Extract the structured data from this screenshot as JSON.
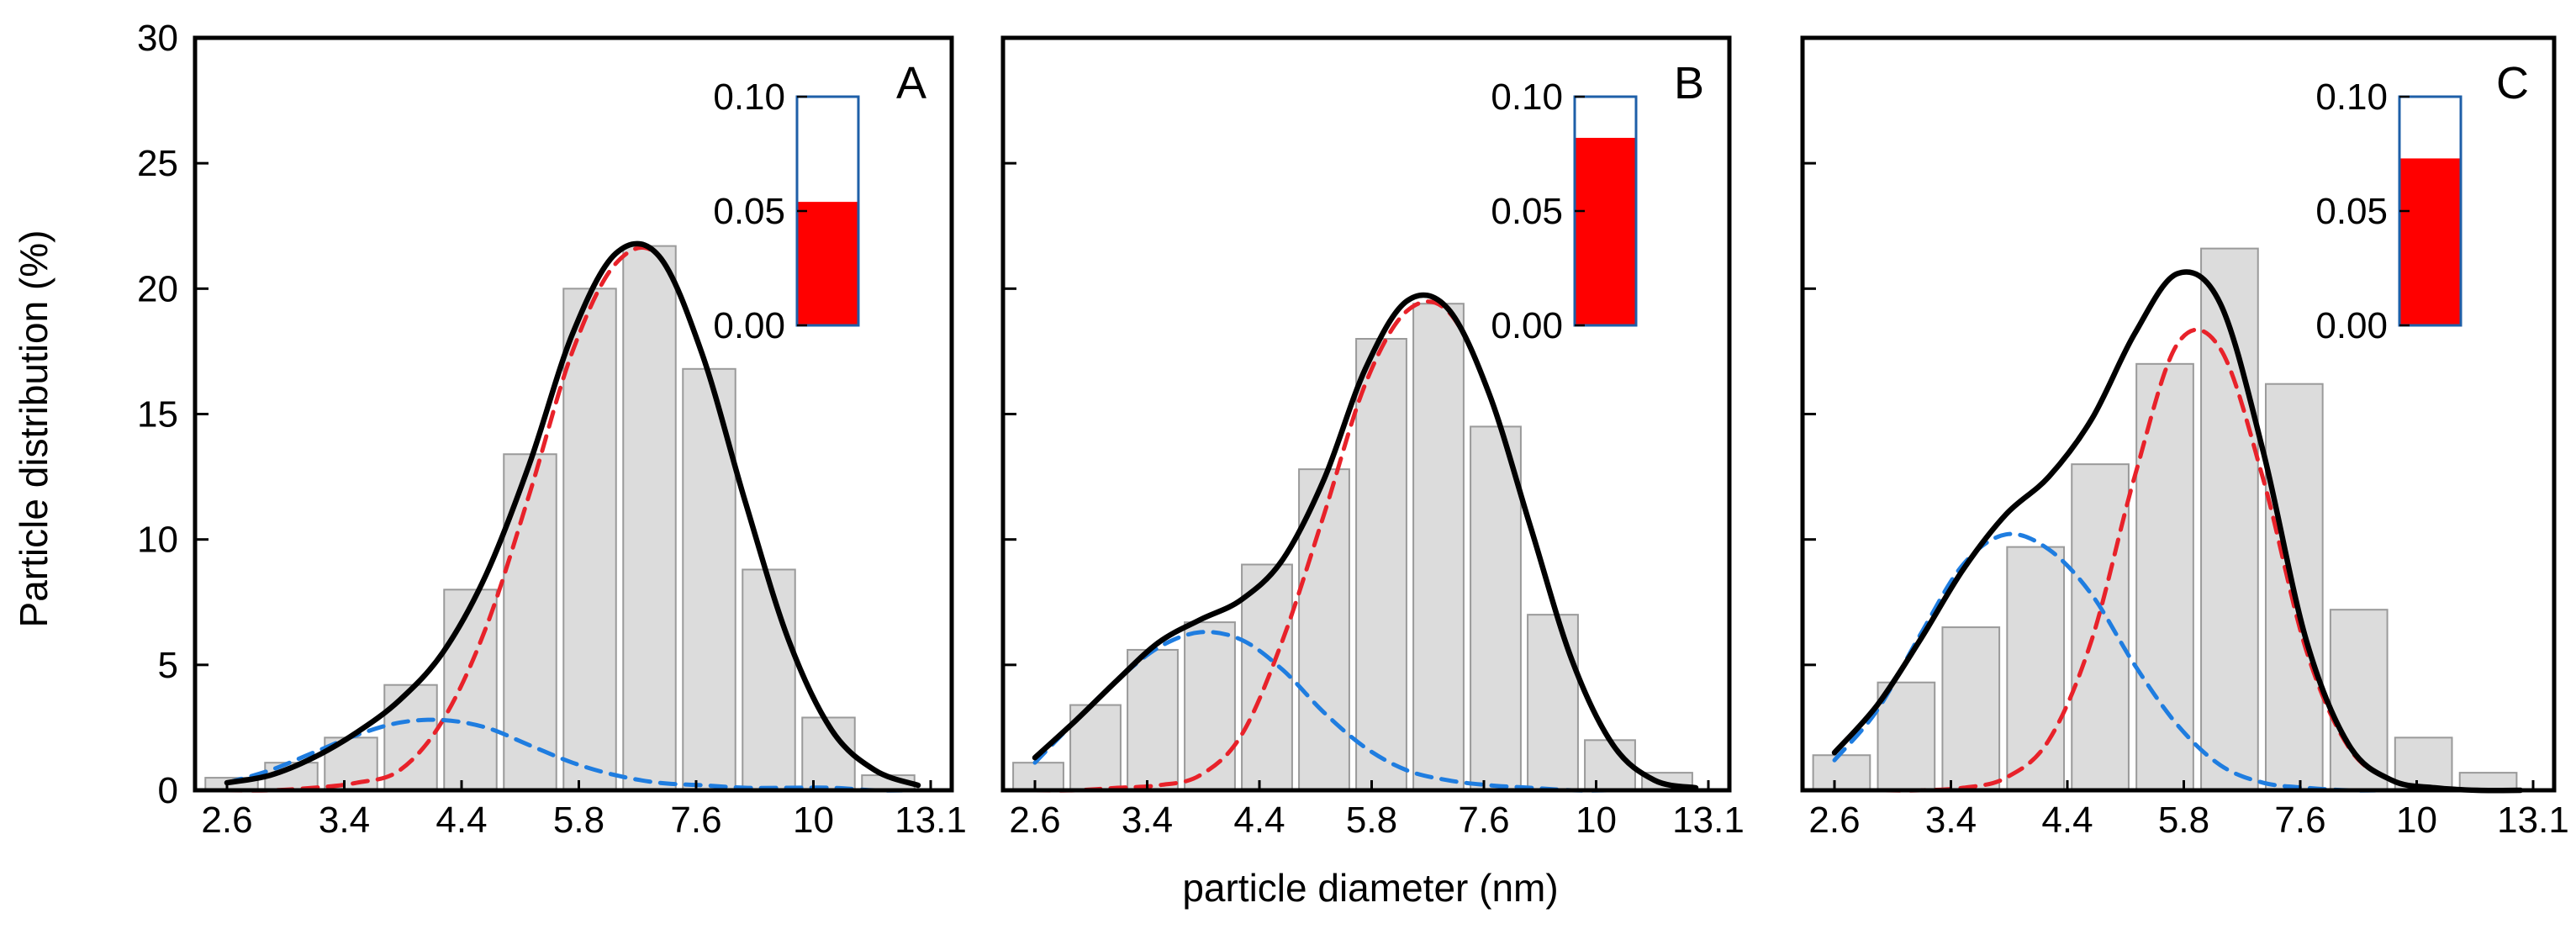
{
  "figure": {
    "ylabel": "Particle distribution (%)",
    "xlabel": "particle diameter (nm)"
  },
  "chart_data": [
    {
      "type": "bar",
      "panel": "A",
      "categories": [
        "2.6",
        "3.4",
        "4.4",
        "5.8",
        "7.6",
        "10",
        "13.1"
      ],
      "ylim": [
        0,
        30
      ],
      "yticks": [
        0,
        5,
        10,
        15,
        20,
        25,
        30
      ],
      "bars": [
        0.5,
        1.1,
        2.1,
        4.2,
        8.0,
        13.4,
        20.0,
        21.7,
        16.8,
        8.8,
        2.9,
        0.6
      ],
      "curves": {
        "total": [
          0.3,
          0.6,
          1.3,
          2.3,
          3.6,
          5.5,
          8.6,
          13.0,
          18.2,
          21.4,
          21.3,
          17.4,
          11.5,
          6.0,
          2.4,
          0.8,
          0.2
        ],
        "large": [
          0.0,
          0.0,
          0.1,
          0.3,
          0.8,
          2.8,
          6.5,
          11.8,
          17.5,
          21.0,
          21.3,
          17.4,
          11.5,
          6.0,
          2.4,
          0.8,
          0.2
        ],
        "small": [
          0.3,
          0.8,
          1.5,
          2.2,
          2.7,
          2.8,
          2.5,
          1.8,
          1.1,
          0.6,
          0.3,
          0.2,
          0.1,
          0.1,
          0.1,
          0.0,
          0.0
        ]
      },
      "inset": {
        "ylim": [
          0,
          0.1
        ],
        "yticks": [
          "0.00",
          "0.05",
          "0.10"
        ],
        "value": 0.054
      }
    },
    {
      "type": "bar",
      "panel": "B",
      "categories": [
        "2.6",
        "3.4",
        "4.4",
        "5.8",
        "7.6",
        "10",
        "13.1"
      ],
      "ylim": [
        0,
        30
      ],
      "yticks": [
        0,
        5,
        10,
        15,
        20,
        25,
        30
      ],
      "bars": [
        1.1,
        3.4,
        5.6,
        6.7,
        9.0,
        12.8,
        18.0,
        19.4,
        14.5,
        7.0,
        2.0,
        0.7
      ],
      "curves": {
        "total": [
          1.3,
          2.8,
          4.4,
          5.9,
          6.8,
          7.6,
          9.2,
          12.4,
          16.8,
          19.5,
          19.2,
          15.8,
          10.5,
          5.2,
          1.8,
          0.4,
          0.1
        ],
        "large": [
          0.0,
          0.0,
          0.1,
          0.2,
          0.6,
          2.2,
          6.0,
          11.0,
          16.2,
          19.1,
          19.1,
          15.8,
          10.5,
          5.2,
          1.8,
          0.4,
          0.1
        ],
        "small": [
          1.1,
          2.8,
          4.4,
          5.7,
          6.3,
          6.0,
          4.8,
          3.1,
          1.7,
          0.8,
          0.4,
          0.2,
          0.1,
          0.0,
          0.0,
          0.0,
          0.0
        ]
      },
      "inset": {
        "ylim": [
          0,
          0.1
        ],
        "yticks": [
          "0.00",
          "0.05",
          "0.10"
        ],
        "value": 0.082
      }
    },
    {
      "type": "bar",
      "panel": "C",
      "categories": [
        "2.6",
        "3.4",
        "4.4",
        "5.8",
        "7.6",
        "10",
        "13.1"
      ],
      "ylim": [
        0,
        30
      ],
      "yticks": [
        0,
        5,
        10,
        15,
        20,
        25,
        30
      ],
      "bars": [
        1.4,
        4.3,
        6.5,
        9.7,
        13.0,
        17.0,
        21.6,
        16.2,
        7.2,
        2.1,
        0.7
      ],
      "curves": {
        "total": [
          1.5,
          3.4,
          6.0,
          8.8,
          11.0,
          12.5,
          14.8,
          18.2,
          20.6,
          19.4,
          13.5,
          6.0,
          1.8,
          0.4,
          0.1,
          0.0,
          0.0
        ],
        "large": [
          0.0,
          0.0,
          0.0,
          0.1,
          0.5,
          2.0,
          6.0,
          12.5,
          17.8,
          17.6,
          12.4,
          5.6,
          1.7,
          0.4,
          0.1,
          0.0,
          0.0
        ],
        "small": [
          1.2,
          3.2,
          6.2,
          9.0,
          10.2,
          9.6,
          7.8,
          5.0,
          2.6,
          1.0,
          0.3,
          0.1,
          0.0,
          0.0,
          0.0,
          0.0,
          0.0
        ]
      },
      "inset": {
        "ylim": [
          0,
          0.1
        ],
        "yticks": [
          "0.00",
          "0.05",
          "0.10"
        ],
        "value": 0.073
      }
    }
  ],
  "colors": {
    "bar_fill": "#dcdcdc",
    "bar_stroke": "#9a9a9a",
    "total": "#000000",
    "large": "#e8222a",
    "small": "#1f7de0",
    "inset_fill": "#ff0000",
    "inset_frame": "#1e5fa8"
  }
}
